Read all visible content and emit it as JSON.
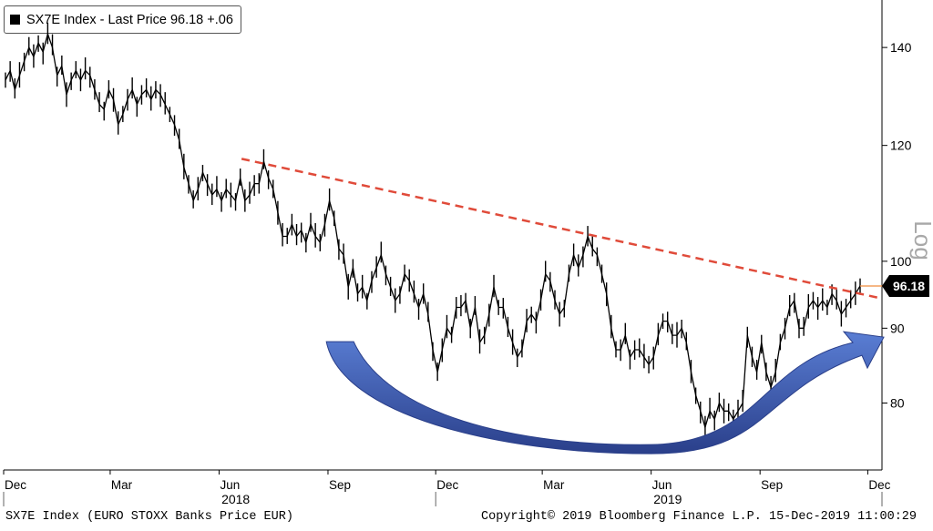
{
  "legend": {
    "text": "SX7E Index - Last Price 96.18  +.06",
    "swatch_color": "#000000"
  },
  "footer": {
    "left": "SX7E Index (EURO STOXX Banks Price EUR)",
    "right": "Copyright© 2019 Bloomberg Finance L.P.  15-Dec-2019 11:00:29"
  },
  "chart_data": {
    "type": "line",
    "series": [
      {
        "values": [
          133,
          135,
          131,
          134,
          137,
          140,
          138,
          141,
          139,
          143,
          140,
          134,
          136,
          130,
          133,
          135,
          133,
          135,
          134,
          131,
          128,
          127,
          131,
          129,
          124,
          126,
          129,
          131,
          128,
          130,
          131,
          129,
          131,
          130,
          128,
          126,
          124,
          121,
          116,
          113,
          110,
          112,
          115,
          113,
          111,
          112,
          110,
          112,
          111,
          110,
          114,
          110,
          111,
          113,
          113,
          117,
          114,
          112,
          108,
          104,
          104,
          106,
          104,
          105,
          103,
          106,
          104,
          103,
          106,
          110,
          107,
          102,
          101,
          96,
          99,
          95,
          96,
          94,
          97,
          99,
          101,
          98,
          96,
          94,
          95,
          98,
          97,
          95,
          93,
          95,
          92,
          87,
          84,
          87,
          90,
          89,
          93,
          93,
          94,
          90,
          93,
          88,
          89,
          92,
          96,
          93,
          93,
          90,
          88,
          86,
          87,
          91,
          92,
          91,
          94,
          98,
          97,
          94,
          92,
          93,
          98,
          101,
          99,
          101,
          104,
          102,
          101,
          98,
          95,
          90,
          87,
          87,
          89,
          86,
          87,
          87,
          86,
          85,
          86,
          89,
          91,
          91,
          89,
          89,
          90,
          88,
          84,
          81,
          79,
          77,
          79,
          78,
          80,
          79,
          79,
          78,
          79,
          80,
          89,
          86,
          84,
          88,
          84,
          82,
          84,
          88,
          90,
          93,
          94,
          90,
          90,
          93,
          94,
          93,
          94,
          93,
          95,
          94,
          92,
          93,
          94,
          95,
          96.18
        ],
        "color": "#000000"
      }
    ],
    "x_start": "2017-12-01",
    "x_end": "2019-12-13",
    "x_ticks": [
      {
        "label": "Dec",
        "date": "2017-12-01"
      },
      {
        "label": "Mar",
        "date": "2018-03-01"
      },
      {
        "label": "Jun",
        "date": "2018-06-01"
      },
      {
        "label": "Sep",
        "date": "2018-09-01"
      },
      {
        "label": "Dec",
        "date": "2018-12-01"
      },
      {
        "label": "Mar",
        "date": "2019-03-01"
      },
      {
        "label": "Jun",
        "date": "2019-06-01"
      },
      {
        "label": "Sep",
        "date": "2019-09-01"
      },
      {
        "label": "Dec",
        "date": "2019-12-01"
      }
    ],
    "year_labels": [
      {
        "label": "2018",
        "date": "2018-06-15"
      },
      {
        "label": "2019",
        "date": "2019-06-15"
      }
    ],
    "year_separators": [
      "2017-12-01",
      "2018-12-01",
      "2019-12-13"
    ],
    "y_ticks": [
      80,
      90,
      100,
      120,
      140
    ],
    "ylim": [
      72,
      150
    ],
    "y_scale": "log",
    "y_axis_label": "Log",
    "last_price": {
      "value": 96.18,
      "label": "96.18",
      "line_color": "#f08c3c",
      "box_color": "#000000"
    },
    "trendline": {
      "start": {
        "date": "2018-06-20",
        "value": 117.5
      },
      "end": {
        "date": "2019-12-13",
        "value": 94.3
      },
      "color": "#e04b3a",
      "style": "dashed"
    },
    "arrow": {
      "color_light": "#5a7ed4",
      "color_dark": "#2a3f8a",
      "direction": "up-right",
      "start": {
        "date": "2018-09-15",
        "value": 88.5
      },
      "bottom": {
        "date": "2019-06-01",
        "value": 78
      },
      "tip": {
        "date": "2019-12-13",
        "value": 89
      }
    }
  }
}
